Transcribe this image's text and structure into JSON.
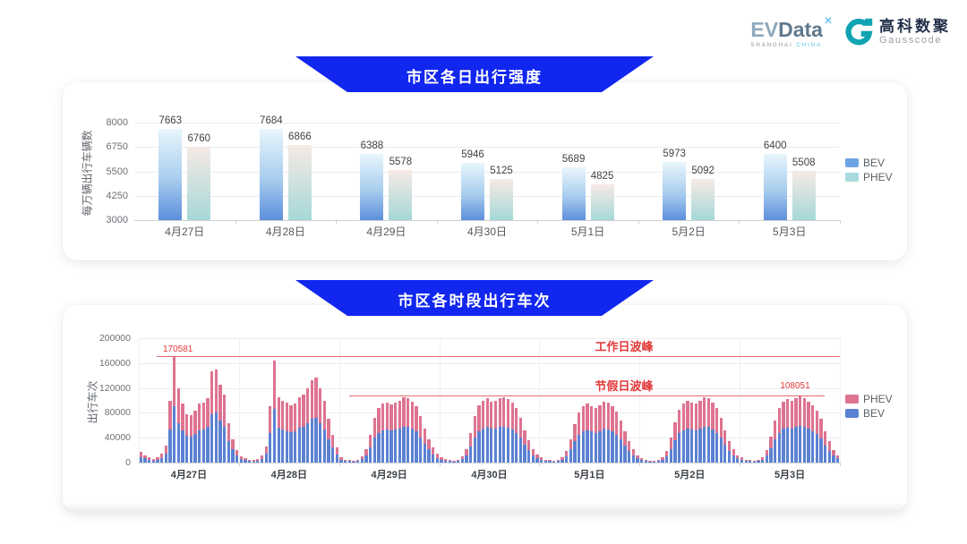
{
  "header": {
    "evdata": {
      "ev": "EV",
      "data": "Data",
      "mark": "✕",
      "sub_left": "SHANGHAI",
      "sub_right": "CHINA"
    },
    "gausscode": {
      "cn": "高科数聚",
      "en": "Gausscode"
    }
  },
  "colors": {
    "banner_blue": "#1126ee",
    "annotation_red": "#e23838",
    "line_red": "#e36a6a",
    "bar_bev_top": "#e9f6fc",
    "bar_bev_mid": "#a8cdee",
    "bar_bev_bottom": "#5d8fdc",
    "bar_phev_top": "#f7eae5",
    "bar_phev_mid": "#d6e3e0",
    "bar_phev_bottom": "#a6d8d8",
    "legend_bev": "#6da3e3",
    "legend_phev": "#a9dadd",
    "stack_bev": "#5b81d2",
    "stack_phev": "#de7390",
    "grid": "#ececf0",
    "axis": "#ccd0d6",
    "tick_text": "#6b7075",
    "xlabel1": "#54595e",
    "xlabel2": "#3a3f44",
    "value_label": "#3e4247"
  },
  "chart_data": [
    {
      "type": "bar",
      "title": "市区各日出行强度",
      "ylabel": "每万辆出行车辆数",
      "ylim": [
        3000,
        8000
      ],
      "yticks": [
        3000,
        4250,
        5500,
        6750,
        8000
      ],
      "categories": [
        "4月27日",
        "4月28日",
        "4月29日",
        "4月30日",
        "5月1日",
        "5月2日",
        "5月3日"
      ],
      "series": [
        {
          "name": "BEV",
          "values": [
            7663,
            7684,
            6388,
            5946,
            5689,
            5973,
            6400
          ]
        },
        {
          "name": "PHEV",
          "values": [
            6760,
            6866,
            5578,
            5125,
            4825,
            5092,
            5508
          ]
        }
      ],
      "legend": [
        "BEV",
        "PHEV"
      ],
      "legend_position": "right",
      "grid": true
    },
    {
      "type": "bar",
      "stacked": true,
      "title": "市区各时段出行车次",
      "ylabel": "出行车次",
      "ylim": [
        0,
        200000
      ],
      "yticks": [
        0,
        40000,
        80000,
        120000,
        160000,
        200000
      ],
      "categories": [
        "4月27日",
        "4月28日",
        "4月29日",
        "4月30日",
        "5月1日",
        "5月2日",
        "5月3日"
      ],
      "bars_per_category": 24,
      "series": [
        {
          "name": "BEV",
          "values": [
            [
              9000,
              6500,
              5000,
              3300,
              4400,
              7700,
              15000,
              53000,
              90000,
              63000,
              52000,
              43000,
              42000,
              46000,
              52000,
              53000,
              57000,
              78000,
              80000,
              67000,
              58000,
              34000,
              21000,
              11000
            ],
            [
              5300,
              3700,
              2700,
              2100,
              3200,
              6400,
              14000,
              48000,
              87000,
              56000,
              53000,
              51000,
              49000,
              50000,
              56000,
              58000,
              64000,
              70000,
              72000,
              64000,
              53000,
              37000,
              24000,
              13000
            ],
            [
              4400,
              2800,
              2200,
              1900,
              2800,
              5500,
              12000,
              25000,
              40000,
              48000,
              52000,
              53000,
              52000,
              53000,
              55000,
              58000,
              57000,
              54000,
              50000,
              41000,
              30000,
              21000,
              13000,
              7700
            ],
            [
              5000,
              3300,
              2200,
              1900,
              2800,
              5500,
              12000,
              26000,
              41000,
              51000,
              55000,
              57000,
              54000,
              55000,
              57000,
              58000,
              56000,
              53000,
              48000,
              40000,
              29000,
              20000,
              12000,
              7200
            ],
            [
              4400,
              2800,
              2200,
              1700,
              2500,
              4400,
              9900,
              21000,
              34000,
              44000,
              50000,
              52000,
              50000,
              48000,
              51000,
              54000,
              53000,
              50000,
              45000,
              37000,
              28000,
              19000,
              12000,
              6600
            ],
            [
              3900,
              2800,
              1900,
              1700,
              2200,
              4400,
              9900,
              22000,
              36000,
              47000,
              52000,
              55000,
              53000,
              52000,
              55000,
              58000,
              57000,
              53000,
              48000,
              40000,
              29000,
              19000,
              12000,
              6600
            ],
            [
              4400,
              2800,
              2200,
              1900,
              2800,
              5000,
              11000,
              23000,
              37000,
              48000,
              54000,
              56000,
              55000,
              57000,
              59000,
              57000,
              54000,
              51000,
              46000,
              39000,
              28000,
              19000,
              11000,
              6600
            ]
          ]
        },
        {
          "name": "PHEV",
          "values": [
            [
              8000,
              5500,
              4000,
              2700,
              3600,
              6300,
              13000,
              47000,
              80581,
              56000,
              43000,
              35000,
              34000,
              37000,
              43000,
              43000,
              46000,
              69000,
              70000,
              58000,
              51000,
              29000,
              17000,
              9000
            ],
            [
              4700,
              3300,
              2300,
              1900,
              2800,
              5600,
              12000,
              42000,
              77000,
              49000,
              47000,
              45000,
              43000,
              45000,
              49000,
              52000,
              56000,
              63000,
              65000,
              56000,
              47000,
              33000,
              21000,
              12000
            ],
            [
              3600,
              2200,
              1800,
              1600,
              2200,
              4500,
              10000,
              20000,
              32000,
              40000,
              43000,
              44000,
              42000,
              43000,
              45000,
              47000,
              46000,
              44000,
              40000,
              34000,
              25000,
              17000,
              11000,
              6300
            ],
            [
              4000,
              2700,
              1800,
              1600,
              2200,
              4500,
              10000,
              22000,
              34000,
              41000,
              45000,
              46000,
              44000,
              45000,
              46000,
              47000,
              46000,
              43000,
              40000,
              32000,
              23000,
              16000,
              10000,
              5800
            ],
            [
              3600,
              2200,
              1800,
              1300,
              2000,
              3600,
              8100,
              17000,
              28000,
              36000,
              40000,
              43000,
              40000,
              40000,
              41000,
              44000,
              43000,
              40000,
              37000,
              30000,
              22000,
              15000,
              9000,
              5400
            ],
            [
              3100,
              2200,
              1600,
              1300,
              1800,
              3600,
              8100,
              18000,
              29000,
              38000,
              43000,
              45000,
              44000,
              43000,
              45000,
              47000,
              46000,
              44000,
              40000,
              32000,
              23000,
              16000,
              9000,
              5400
            ],
            [
              3600,
              2200,
              1800,
              1600,
              2200,
              4000,
              9000,
              19000,
              31000,
              40000,
              44000,
              46000,
              45000,
              46000,
              49051,
              47000,
              44000,
              41000,
              38000,
              31000,
              22000,
              15000,
              9000,
              5400
            ]
          ]
        }
      ],
      "legend": [
        "PHEV",
        "BEV"
      ],
      "legend_position": "right",
      "annotations": [
        {
          "name": "workday_peak",
          "label": "工作日波峰",
          "value": 170581,
          "value_label": "170581"
        },
        {
          "name": "holiday_peak",
          "label": "节假日波峰",
          "value": 108051,
          "value_label": "108051"
        }
      ],
      "grid": true
    }
  ]
}
